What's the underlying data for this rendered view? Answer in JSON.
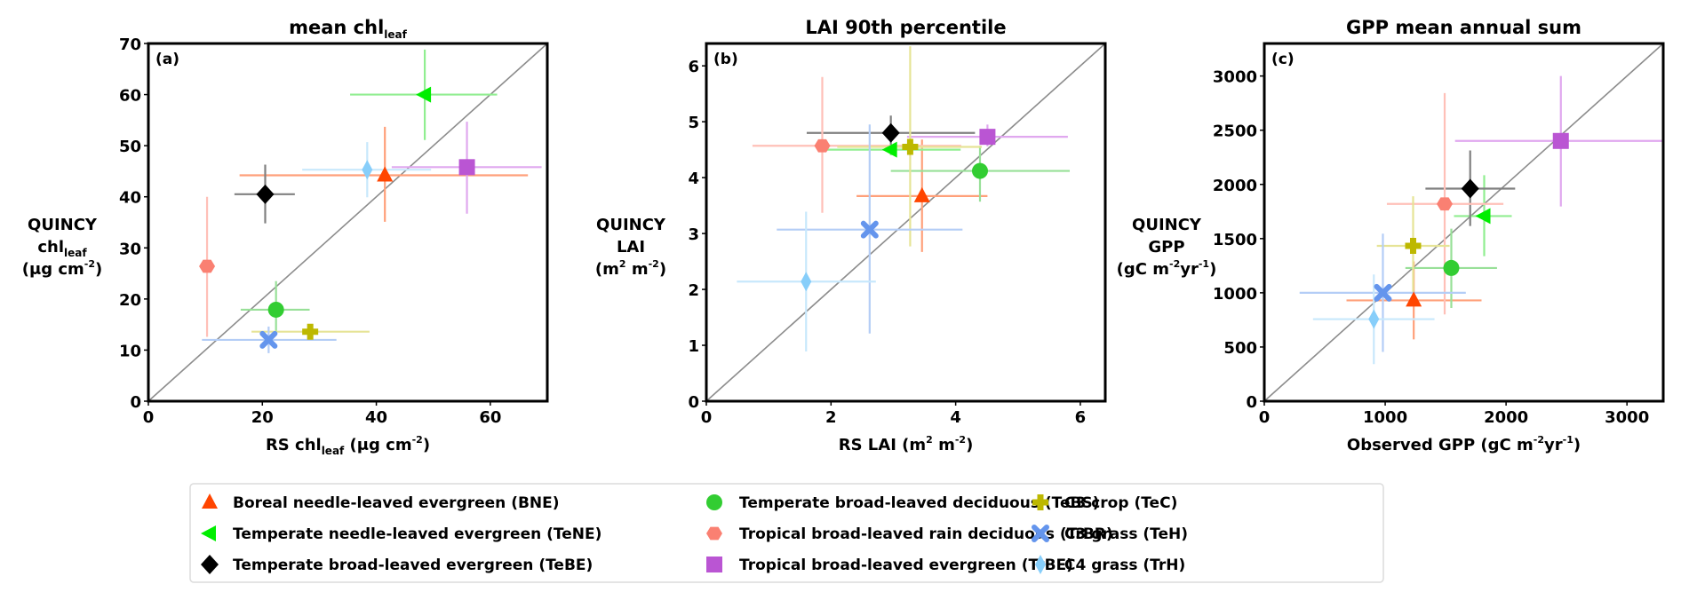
{
  "chart_data": [
    {
      "type": "scatter",
      "panel_label": "(a)",
      "title": "mean chl",
      "title_sub": "leaf",
      "xlabel": {
        "pre": "RS chl",
        "sub": "leaf",
        "post": " (μg cm",
        "sup": "-2",
        "end": ")"
      },
      "ylabel": {
        "lines": [
          "QUINCY"
        ],
        "line2": {
          "pre": "chl",
          "sub": "leaf"
        },
        "line3": {
          "pre": "(μg cm",
          "sup": "-2",
          "end": ")"
        }
      },
      "xlim": [
        0,
        70
      ],
      "ylim": [
        0,
        70
      ],
      "xticks": [
        0,
        20,
        40,
        60
      ],
      "yticks": [
        0,
        10,
        20,
        30,
        40,
        50,
        60,
        70
      ],
      "one_to_one_line": true,
      "points": [
        {
          "pft": "BNE",
          "x": 41.5,
          "y": 44.2,
          "xerr": [
            16.0,
            66.6
          ],
          "yerr": [
            35.1,
            53.7
          ]
        },
        {
          "pft": "TeNE",
          "x": 48.5,
          "y": 60.0,
          "xerr": [
            35.4,
            61.2
          ],
          "yerr": [
            51.1,
            68.8
          ]
        },
        {
          "pft": "TeBE",
          "x": 20.5,
          "y": 40.5,
          "xerr": [
            15.1,
            25.7
          ],
          "yerr": [
            34.8,
            46.3
          ]
        },
        {
          "pft": "TeBS",
          "x": 22.4,
          "y": 17.9,
          "xerr": [
            16.2,
            28.3
          ],
          "yerr": [
            13.3,
            23.5
          ]
        },
        {
          "pft": "TrBR",
          "x": 10.3,
          "y": 26.4,
          "xerr": [
            10.3,
            10.3
          ],
          "yerr": [
            12.6,
            40.0
          ]
        },
        {
          "pft": "TrBE",
          "x": 55.9,
          "y": 45.8,
          "xerr": [
            42.7,
            69.0
          ],
          "yerr": [
            36.7,
            54.7
          ]
        },
        {
          "pft": "TeC",
          "x": 28.4,
          "y": 13.6,
          "xerr": [
            18.1,
            38.8
          ],
          "yerr": [
            12.8,
            14.4
          ]
        },
        {
          "pft": "TeH",
          "x": 21.1,
          "y": 12.0,
          "xerr": [
            9.4,
            33.0
          ],
          "yerr": [
            9.4,
            14.6
          ]
        },
        {
          "pft": "TrH",
          "x": 38.4,
          "y": 45.3,
          "xerr": [
            27.0,
            49.6
          ],
          "yerr": [
            39.9,
            50.7
          ]
        }
      ]
    },
    {
      "type": "scatter",
      "panel_label": "(b)",
      "title": "LAI 90th percentile",
      "title_sub": "",
      "xlabel": {
        "pre": "RS LAI (m",
        "sup1": "2",
        "mid": " m",
        "sup": "-2",
        "end": ")"
      },
      "ylabel": {
        "lines": [
          "QUINCY",
          "LAI"
        ],
        "line3": {
          "pre": "(m",
          "sup1": "2",
          "mid": " m",
          "sup": "-2",
          "end": ")"
        }
      },
      "xlim": [
        0,
        6.4
      ],
      "ylim": [
        0,
        6.4
      ],
      "xticks": [
        0,
        2,
        4,
        6
      ],
      "yticks": [
        0,
        1,
        2,
        3,
        4,
        5,
        6
      ],
      "one_to_one_line": true,
      "points": [
        {
          "pft": "BNE",
          "x": 3.46,
          "y": 3.67,
          "xerr": [
            2.41,
            4.51
          ],
          "yerr": [
            2.67,
            4.68
          ]
        },
        {
          "pft": "TeNE",
          "x": 2.96,
          "y": 4.5,
          "xerr": [
            1.91,
            4.08
          ],
          "yerr": [
            4.4,
            4.6
          ]
        },
        {
          "pft": "TeBE",
          "x": 2.96,
          "y": 4.8,
          "xerr": [
            1.61,
            4.31
          ],
          "yerr": [
            4.5,
            5.11
          ]
        },
        {
          "pft": "TeBS",
          "x": 4.39,
          "y": 4.12,
          "xerr": [
            2.96,
            5.83
          ],
          "yerr": [
            3.57,
            4.57
          ]
        },
        {
          "pft": "TrBR",
          "x": 1.86,
          "y": 4.57,
          "xerr": [
            0.74,
            4.09
          ],
          "yerr": [
            3.37,
            5.8
          ]
        },
        {
          "pft": "TrBE",
          "x": 4.51,
          "y": 4.73,
          "xerr": [
            3.22,
            5.8
          ],
          "yerr": [
            4.56,
            4.95
          ]
        },
        {
          "pft": "TeC",
          "x": 3.27,
          "y": 4.55,
          "xerr": [
            2.1,
            4.42
          ],
          "yerr": [
            2.77,
            6.35
          ]
        },
        {
          "pft": "TeH",
          "x": 2.62,
          "y": 3.07,
          "xerr": [
            1.13,
            4.11
          ],
          "yerr": [
            1.21,
            4.95
          ]
        },
        {
          "pft": "TrH",
          "x": 1.6,
          "y": 2.14,
          "xerr": [
            0.49,
            2.72
          ],
          "yerr": [
            0.89,
            3.39
          ]
        }
      ]
    },
    {
      "type": "scatter",
      "panel_label": "(c)",
      "title": "GPP mean annual sum",
      "title_sub": "",
      "xlabel": {
        "pre": "Observed GPP (gC m",
        "sup": "-2",
        "mid": "yr",
        "sup2": "-1",
        "end": ")"
      },
      "ylabel": {
        "lines": [
          "QUINCY",
          "GPP"
        ],
        "line3": {
          "pre": "(gC m",
          "sup": "-2",
          "mid": "yr",
          "sup2": "-1",
          "end": ")"
        }
      },
      "xlim": [
        0,
        3300
      ],
      "ylim": [
        0,
        3300
      ],
      "xticks": [
        0,
        1000,
        2000,
        3000
      ],
      "yticks": [
        0,
        500,
        1000,
        1500,
        2000,
        2500,
        3000
      ],
      "one_to_one_line": true,
      "points": [
        {
          "pft": "BNE",
          "x": 1236,
          "y": 930,
          "xerr": [
            680,
            1797
          ],
          "yerr": [
            570,
            1290
          ]
        },
        {
          "pft": "TeNE",
          "x": 1819,
          "y": 1708,
          "xerr": [
            1569,
            2047
          ],
          "yerr": [
            1338,
            2085
          ]
        },
        {
          "pft": "TeBE",
          "x": 1703,
          "y": 1961,
          "xerr": [
            1333,
            2075
          ],
          "yerr": [
            1616,
            2313
          ]
        },
        {
          "pft": "TeBS",
          "x": 1547,
          "y": 1229,
          "xerr": [
            1167,
            1925
          ],
          "yerr": [
            860,
            1592
          ]
        },
        {
          "pft": "TrBR",
          "x": 1492,
          "y": 1820,
          "xerr": [
            1014,
            1978
          ],
          "yerr": [
            800,
            2842
          ]
        },
        {
          "pft": "TrBE",
          "x": 2453,
          "y": 2401,
          "xerr": [
            1578,
            3300
          ],
          "yerr": [
            1796,
            3000
          ]
        },
        {
          "pft": "TeC",
          "x": 1231,
          "y": 1433,
          "xerr": [
            931,
            1533
          ],
          "yerr": [
            975,
            1891
          ]
        },
        {
          "pft": "TeH",
          "x": 981,
          "y": 1000,
          "xerr": [
            292,
            1667
          ],
          "yerr": [
            454,
            1546
          ]
        },
        {
          "pft": "TrH",
          "x": 906,
          "y": 757,
          "xerr": [
            403,
            1408
          ],
          "yerr": [
            342,
            1169
          ]
        }
      ]
    }
  ],
  "legend": {
    "placement": "bottom-center",
    "entries": [
      {
        "pft": "BNE",
        "label": "Boreal needle-leaved evergreen (BNE)",
        "marker": "triangle-up",
        "color": "#ff4500",
        "err_color": "#ffa07a"
      },
      {
        "pft": "TeNE",
        "label": "Temperate needle-leaved evergreen (TeNE)",
        "marker": "triangle-left",
        "color": "#00ee00",
        "err_color": "#90ee90"
      },
      {
        "pft": "TeBE",
        "label": "Temperate broad-leaved evergreen (TeBE)",
        "marker": "diamond",
        "color": "#000000",
        "err_color": "#808080"
      },
      {
        "pft": "TeBS",
        "label": "Temperate broad-leaved deciduous (TeBS)",
        "marker": "circle",
        "color": "#32cd32",
        "err_color": "#98e098"
      },
      {
        "pft": "TrBR",
        "label": "Tropical broad-leaved rain deciduous (TrBR)",
        "marker": "hexagon",
        "color": "#fa8072",
        "err_color": "#ffc0b8"
      },
      {
        "pft": "TrBE",
        "label": "Tropical broad-leaved evergreen (TrBE)",
        "marker": "square",
        "color": "#ba55d3",
        "err_color": "#e0a8ef"
      },
      {
        "pft": "TeC",
        "label": "C3 crop (TeC)",
        "marker": "plus",
        "color": "#bdb800",
        "err_color": "#e6e496"
      },
      {
        "pft": "TeH",
        "label": "C3 grass (TeH)",
        "marker": "x",
        "color": "#6495ed",
        "err_color": "#b4cdf6"
      },
      {
        "pft": "TrH",
        "label": "C4 grass (TrH)",
        "marker": "thin-diamond",
        "color": "#87cefa",
        "err_color": "#c8e8fc"
      }
    ]
  }
}
